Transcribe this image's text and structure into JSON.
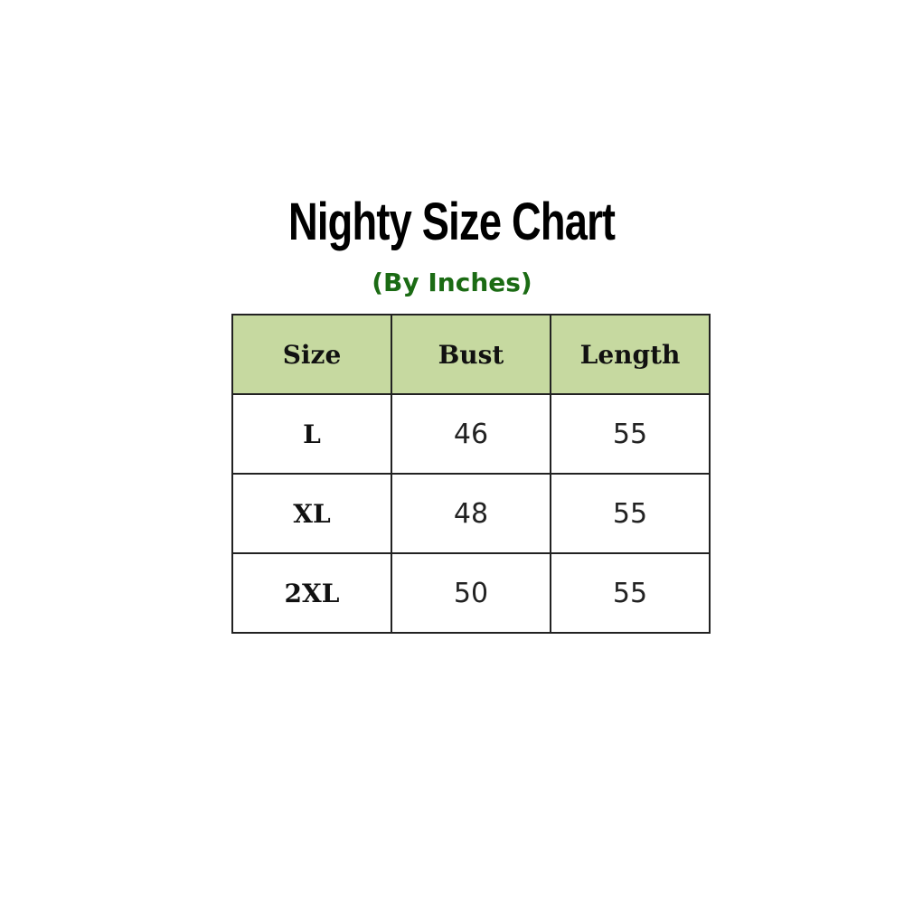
{
  "title": "Nighty Size Chart",
  "subtitle": "(By Inches)",
  "colors": {
    "header_fill": "#c6d9a0",
    "subtitle": "#1b6b14"
  },
  "table": {
    "headers": [
      "Size",
      "Bust",
      "Length"
    ],
    "rows": [
      [
        "L",
        "46",
        "55"
      ],
      [
        "XL",
        "48",
        "55"
      ],
      [
        "2XL",
        "50",
        "55"
      ]
    ]
  }
}
